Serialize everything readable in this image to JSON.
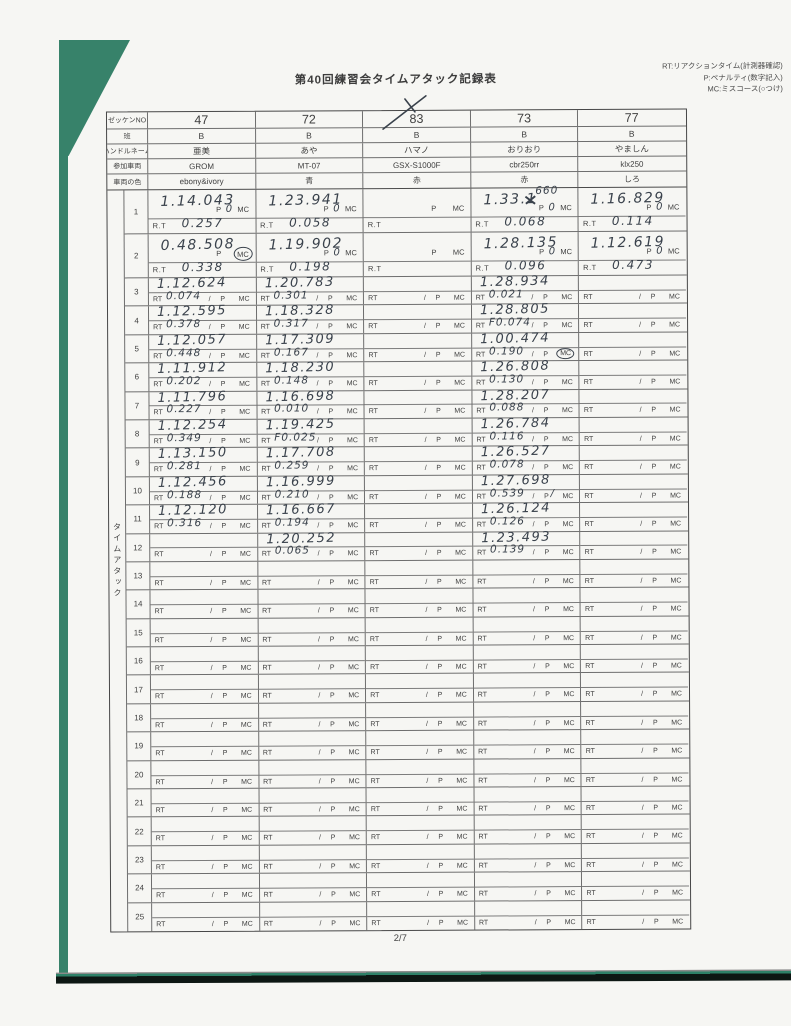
{
  "page": {
    "title": "第40回練習会タイムアタック記録表",
    "page_number": "2/7"
  },
  "legend": {
    "lines": [
      "RT:リアクションタイム(計測器確認)",
      "P:ペナルティ(数字記入)",
      "MC:ミスコース(○つけ)"
    ]
  },
  "labels": {
    "rt": "RT",
    "rt_dot": "R.T",
    "p": "P",
    "mc": "MC",
    "slash": "/"
  },
  "section_label": "タイムアタック",
  "header": {
    "row_labels": [
      "ゼッケンNO",
      "班",
      "ハンドルネーム",
      "参加車両",
      "車両の色"
    ],
    "columns": [
      {
        "no": "47",
        "band": "B",
        "name": "亜美",
        "vehicle": "GROM",
        "color": "ebony&ivory"
      },
      {
        "no": "72",
        "band": "B",
        "name": "あや",
        "vehicle": "MT-07",
        "color": "青"
      },
      {
        "no": "83",
        "band": "B",
        "name": "ハマノ",
        "vehicle": "GSX-S1000F",
        "color": "赤"
      },
      {
        "no": "73",
        "band": "B",
        "name": "おりおり",
        "vehicle": "cbr250rr",
        "color": "赤"
      },
      {
        "no": "77",
        "band": "B",
        "name": "やましん",
        "vehicle": "klx250",
        "color": "しろ"
      }
    ]
  },
  "attempts": [
    {
      "no": "1",
      "type": "tall",
      "cells": [
        {
          "time": "1.14.043",
          "p": "0",
          "rt": "0.257"
        },
        {
          "time": "1.23.941",
          "p": "0",
          "rt": "0.058"
        },
        {},
        {
          "time": "1.33.",
          "time_struck": "1",
          "time_super": "660",
          "p": "0",
          "rt": "0.068"
        },
        {
          "time": "1.16.829",
          "p": "0",
          "rt": "0.114"
        }
      ]
    },
    {
      "no": "2",
      "type": "tall",
      "cells": [
        {
          "time": "0.48.508",
          "mc_circled": true,
          "rt": "0.338"
        },
        {
          "time": "1.19.902",
          "p": "0",
          "rt": "0.198"
        },
        {},
        {
          "time": "1.28.135",
          "p": "0",
          "rt": "0.096"
        },
        {
          "time": "1.12.619",
          "p": "0",
          "rt": "0.473"
        }
      ]
    },
    {
      "no": "3",
      "type": "short",
      "cells": [
        {
          "time": "1.12.624",
          "rt": "0.074"
        },
        {
          "time": "1.20.783",
          "rt": "0.301"
        },
        {},
        {
          "time": "1.28.934",
          "rt": "0.021"
        },
        {}
      ]
    },
    {
      "no": "4",
      "type": "short",
      "cells": [
        {
          "time": "1.12.595",
          "rt": "0.378"
        },
        {
          "time": "1.18.328",
          "rt": "0.317"
        },
        {},
        {
          "time": "1.28.805",
          "rt": "F0.074"
        },
        {}
      ]
    },
    {
      "no": "5",
      "type": "short",
      "cells": [
        {
          "time": "1.12.057",
          "rt": "0.448"
        },
        {
          "time": "1.17.309",
          "rt": "0.167"
        },
        {},
        {
          "time": "1.00.474",
          "rt": "0.190",
          "mc_circled": true
        },
        {}
      ]
    },
    {
      "no": "6",
      "type": "short",
      "cells": [
        {
          "time": "1.11.912",
          "rt": "0.202"
        },
        {
          "time": "1.18.230",
          "rt": "0.148"
        },
        {},
        {
          "time": "1.26.808",
          "rt": "0.130"
        },
        {}
      ]
    },
    {
      "no": "7",
      "type": "short",
      "cells": [
        {
          "time": "1.11.796",
          "rt": "0.227"
        },
        {
          "time": "1.16.698",
          "rt": "0.010"
        },
        {},
        {
          "time": "1.28.207",
          "rt": "0.088"
        },
        {}
      ]
    },
    {
      "no": "8",
      "type": "short",
      "cells": [
        {
          "time": "1.12.254",
          "rt": "0.349"
        },
        {
          "time": "1.19.425",
          "rt": "F0.025"
        },
        {},
        {
          "time": "1.26.784",
          "rt": "0.116"
        },
        {}
      ]
    },
    {
      "no": "9",
      "type": "short",
      "cells": [
        {
          "time": "1.13.150",
          "rt": "0.281"
        },
        {
          "time": "1.17.708",
          "rt": "0.259"
        },
        {},
        {
          "time": "1.26.527",
          "rt": "0.078"
        },
        {}
      ]
    },
    {
      "no": "10",
      "type": "short",
      "cells": [
        {
          "time": "1.12.456",
          "rt": "0.188"
        },
        {
          "time": "1.16.999",
          "rt": "0.210"
        },
        {},
        {
          "time": "1.27.698",
          "rt": "0.539",
          "p_mark": "/"
        },
        {}
      ]
    },
    {
      "no": "11",
      "type": "short",
      "cells": [
        {
          "time": "1.12.120",
          "rt": "0.316"
        },
        {
          "time": "1.16.667",
          "rt": "0.194"
        },
        {},
        {
          "time": "1.26.124",
          "rt": "0.126"
        },
        {}
      ]
    },
    {
      "no": "12",
      "type": "short",
      "cells": [
        {},
        {
          "time": "1.20.252",
          "rt": "0.065"
        },
        {},
        {
          "time": "1.23.493",
          "rt": "0.139"
        },
        {}
      ]
    },
    {
      "no": "13",
      "type": "short",
      "cells": [
        {},
        {},
        {},
        {},
        {}
      ]
    },
    {
      "no": "14",
      "type": "short",
      "cells": [
        {},
        {},
        {},
        {},
        {}
      ]
    },
    {
      "no": "15",
      "type": "short",
      "cells": [
        {},
        {},
        {},
        {},
        {}
      ]
    },
    {
      "no": "16",
      "type": "short",
      "cells": [
        {},
        {},
        {},
        {},
        {}
      ]
    },
    {
      "no": "17",
      "type": "short",
      "cells": [
        {},
        {},
        {},
        {},
        {}
      ]
    },
    {
      "no": "18",
      "type": "short",
      "cells": [
        {},
        {},
        {},
        {},
        {}
      ]
    },
    {
      "no": "19",
      "type": "short",
      "cells": [
        {},
        {},
        {},
        {},
        {}
      ]
    },
    {
      "no": "20",
      "type": "short",
      "cells": [
        {},
        {},
        {},
        {},
        {}
      ]
    },
    {
      "no": "21",
      "type": "short",
      "cells": [
        {},
        {},
        {},
        {},
        {}
      ]
    },
    {
      "no": "22",
      "type": "short",
      "cells": [
        {},
        {},
        {},
        {},
        {}
      ]
    },
    {
      "no": "23",
      "type": "short",
      "cells": [
        {},
        {},
        {},
        {},
        {}
      ]
    },
    {
      "no": "24",
      "type": "short",
      "cells": [
        {},
        {},
        {},
        {},
        {}
      ]
    },
    {
      "no": "25",
      "type": "short",
      "cells": [
        {},
        {},
        {},
        {},
        {}
      ]
    }
  ]
}
